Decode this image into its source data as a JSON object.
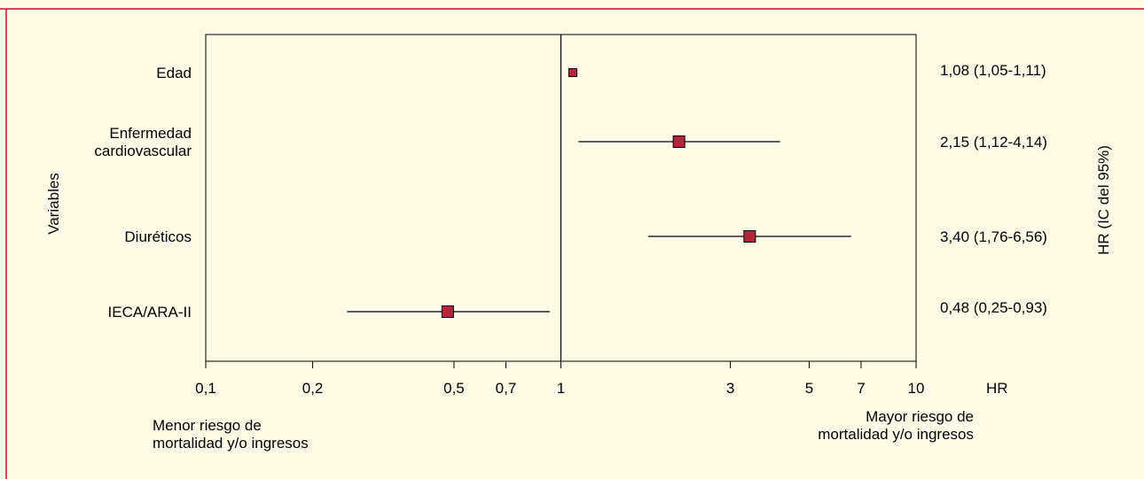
{
  "chart_data": {
    "type": "forest",
    "xscale": "log",
    "xlim": [
      0.1,
      10
    ],
    "reference_line": 1,
    "xticks": [
      {
        "value": 0.1,
        "label": "0,1"
      },
      {
        "value": 0.2,
        "label": "0,2"
      },
      {
        "value": 0.5,
        "label": "0,5"
      },
      {
        "value": 0.7,
        "label": "0,7"
      },
      {
        "value": 1,
        "label": "1"
      },
      {
        "value": 3,
        "label": "3"
      },
      {
        "value": 5,
        "label": "5"
      },
      {
        "value": 7,
        "label": "7"
      },
      {
        "value": 10,
        "label": "10"
      }
    ],
    "xlabel": "HR",
    "ylabel": "Variables",
    "right_axis_label": "HR (IC del 95%)",
    "left_note": [
      "Menor riesgo de",
      "mortalidad y/o ingresos"
    ],
    "right_note": [
      "Mayor riesgo de",
      "mortalidad y/o ingresos"
    ],
    "marker_color": "#b5253a",
    "frame_color": "#c8102e",
    "background_color": "#fffbe6",
    "rows": [
      {
        "label": [
          "Edad"
        ],
        "hr": 1.08,
        "lower": 1.05,
        "upper": 1.11,
        "text": "1,08 (1,05-1,11)",
        "marker": "small"
      },
      {
        "label": [
          "Enfermedad",
          "cardiovascular"
        ],
        "hr": 2.15,
        "lower": 1.12,
        "upper": 4.14,
        "text": "2,15 (1,12-4,14)",
        "marker": "large"
      },
      {
        "label": [
          "Diuréticos"
        ],
        "hr": 3.4,
        "lower": 1.76,
        "upper": 6.56,
        "text": "3,40 (1,76-6,56)",
        "marker": "large"
      },
      {
        "label": [
          "IECA/ARA-II"
        ],
        "hr": 0.48,
        "lower": 0.25,
        "upper": 0.93,
        "text": "0,48 (0,25-0,93)",
        "marker": "large"
      }
    ]
  }
}
